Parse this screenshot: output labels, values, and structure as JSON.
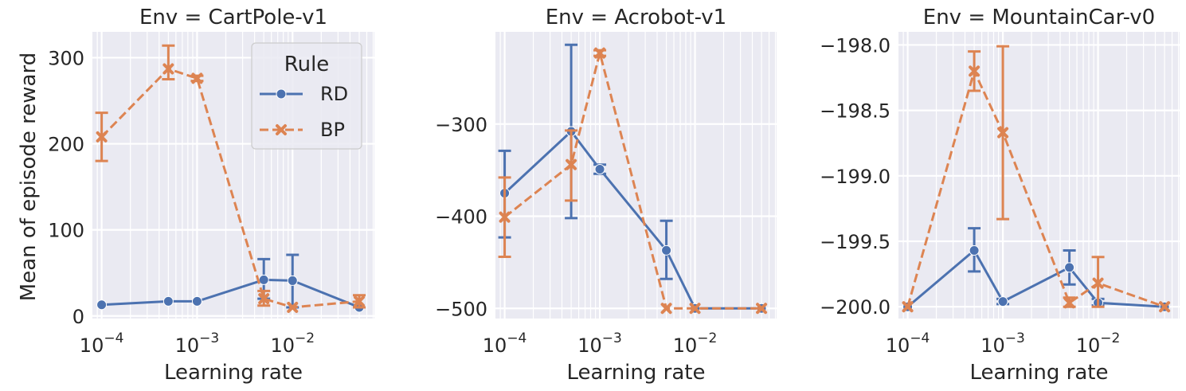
{
  "figure": {
    "ylabel": "Mean of episode reward",
    "legend": {
      "title": "Rule",
      "placement": "top-right (first panel)"
    }
  },
  "colors": {
    "RD": "#4c72b0",
    "BP": "#dd8452",
    "panel_bg": "#eaeaf2",
    "grid": "#ffffff",
    "text": "#262626"
  },
  "chart_data": [
    {
      "type": "line",
      "title": "Env = CartPole-v1",
      "xlabel": "Learning rate",
      "ylabel": "Mean of episode reward",
      "xscale": "log",
      "xlim": [
        8e-05,
        0.072
      ],
      "ylim": [
        -3,
        330
      ],
      "xticks": [
        {
          "v": 0.0001,
          "b": "10",
          "e": "−4"
        },
        {
          "v": 0.001,
          "b": "10",
          "e": "−3"
        },
        {
          "v": 0.01,
          "b": "10",
          "e": "−2"
        }
      ],
      "yticks": [
        {
          "v": 0,
          "l": "0"
        },
        {
          "v": 100,
          "l": "100"
        },
        {
          "v": 200,
          "l": "200"
        },
        {
          "v": 300,
          "l": "300"
        }
      ],
      "grid": true,
      "legend": true,
      "series": [
        {
          "name": "RD",
          "marker": "circle",
          "dash": "solid",
          "x": [
            0.0001,
            0.0005,
            0.001,
            0.005,
            0.01,
            0.05
          ],
          "y": [
            13,
            17,
            17,
            42,
            41,
            10
          ],
          "err_low": [
            null,
            null,
            null,
            20,
            10,
            null
          ],
          "err_high": [
            null,
            null,
            null,
            66,
            71,
            null
          ]
        },
        {
          "name": "BP",
          "marker": "x",
          "dash": "dashed",
          "x": [
            0.0001,
            0.0005,
            0.001,
            0.005,
            0.01,
            0.05
          ],
          "y": [
            208,
            287,
            276,
            20,
            10,
            17
          ],
          "err_low": [
            180,
            275,
            273,
            12,
            null,
            10
          ],
          "err_high": [
            236,
            314,
            279,
            29,
            null,
            24
          ]
        }
      ]
    },
    {
      "type": "line",
      "title": "Env = Acrobot-v1",
      "xlabel": "Learning rate",
      "ylabel": "",
      "xscale": "log",
      "xlim": [
        8e-05,
        0.072
      ],
      "ylim": [
        -511,
        -200
      ],
      "xticks": [
        {
          "v": 0.0001,
          "b": "10",
          "e": "−4"
        },
        {
          "v": 0.001,
          "b": "10",
          "e": "−3"
        },
        {
          "v": 0.01,
          "b": "10",
          "e": "−2"
        }
      ],
      "yticks": [
        {
          "v": -500,
          "l": "−500"
        },
        {
          "v": -400,
          "l": "−400"
        },
        {
          "v": -300,
          "l": "−300"
        }
      ],
      "grid": true,
      "legend": false,
      "series": [
        {
          "name": "RD",
          "marker": "circle",
          "dash": "solid",
          "x": [
            0.0001,
            0.0005,
            0.001,
            0.005,
            0.01,
            0.05
          ],
          "y": [
            -375,
            -308,
            -349,
            -437,
            -500,
            -500
          ],
          "err_low": [
            -423,
            -402,
            -354,
            -468,
            null,
            null
          ],
          "err_high": [
            -329,
            -214,
            -344,
            -405,
            null,
            null
          ]
        },
        {
          "name": "BP",
          "marker": "x",
          "dash": "dashed",
          "x": [
            0.0001,
            0.0005,
            0.001,
            0.005,
            0.01,
            0.05
          ],
          "y": [
            -401,
            -344,
            -223,
            -500,
            -500,
            -500
          ],
          "err_low": [
            -444,
            -383,
            -226,
            null,
            null,
            null
          ],
          "err_high": [
            -358,
            -307,
            -220,
            null,
            null,
            null
          ]
        }
      ]
    },
    {
      "type": "line",
      "title": "Env = MountainCar-v0",
      "xlabel": "Learning rate",
      "ylabel": "",
      "xscale": "log",
      "xlim": [
        8e-05,
        0.072
      ],
      "ylim": [
        -200.09,
        -197.9
      ],
      "xticks": [
        {
          "v": 0.0001,
          "b": "10",
          "e": "−4"
        },
        {
          "v": 0.001,
          "b": "10",
          "e": "−3"
        },
        {
          "v": 0.01,
          "b": "10",
          "e": "−2"
        }
      ],
      "yticks": [
        {
          "v": -200.0,
          "l": "−200.0"
        },
        {
          "v": -199.5,
          "l": "−199.5"
        },
        {
          "v": -199.0,
          "l": "−199.0"
        },
        {
          "v": -198.5,
          "l": "−198.5"
        },
        {
          "v": -198.0,
          "l": "−198.0"
        }
      ],
      "grid": true,
      "legend": false,
      "series": [
        {
          "name": "RD",
          "marker": "circle",
          "dash": "solid",
          "x": [
            0.0001,
            0.0005,
            0.001,
            0.005,
            0.01,
            0.05
          ],
          "y": [
            -200.0,
            -199.57,
            -199.96,
            -199.7,
            -199.97,
            -200.0
          ],
          "err_low": [
            null,
            -199.73,
            -199.98,
            -199.83,
            -199.99,
            null
          ],
          "err_high": [
            null,
            -199.4,
            -199.94,
            -199.57,
            -199.94,
            null
          ]
        },
        {
          "name": "BP",
          "marker": "x",
          "dash": "dashed",
          "x": [
            0.0001,
            0.0005,
            0.001,
            0.005,
            0.01,
            0.05
          ],
          "y": [
            -200.0,
            -198.2,
            -198.67,
            -199.97,
            -199.82,
            -200.0
          ],
          "err_low": [
            null,
            -198.35,
            -199.33,
            -200.0,
            -200.0,
            null
          ],
          "err_high": [
            null,
            -198.05,
            -198.01,
            -199.93,
            -199.62,
            null
          ]
        }
      ]
    }
  ]
}
